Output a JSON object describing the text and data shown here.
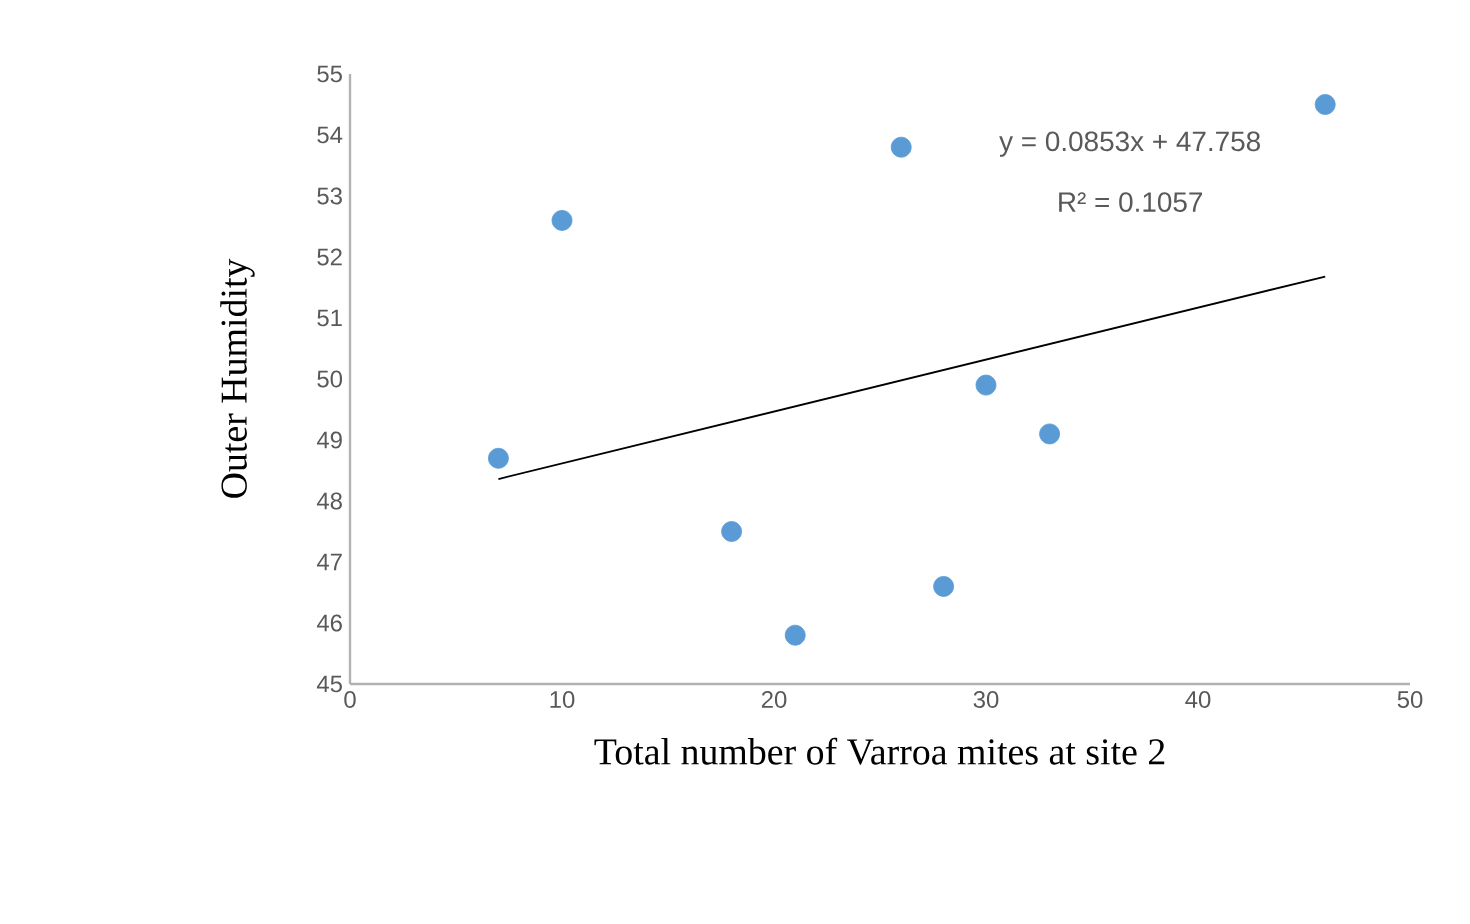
{
  "chart_data": {
    "type": "scatter",
    "xlabel": "Total number of Varroa mites  at site 2",
    "ylabel": "Outer Humidity",
    "annotations": [
      "y = 0.0853x + 47.758",
      "R² = 0.1057"
    ],
    "series": [
      {
        "color": "#5b9bd5",
        "marker": "circle",
        "x": [
          7,
          10,
          18,
          21,
          26,
          28,
          30,
          33,
          46
        ],
        "values": [
          48.7,
          52.6,
          47.5,
          45.8,
          53.8,
          46.6,
          49.9,
          49.1,
          54.5
        ]
      },
      {
        "type": "line",
        "color": "#000000",
        "marker": "none",
        "line_style": "solid",
        "x": [
          7,
          46
        ],
        "values": [
          48.36,
          51.68
        ]
      }
    ],
    "xlim": [
      0,
      50
    ],
    "ylim": [
      45,
      55
    ],
    "xticks": [
      0,
      10,
      20,
      30,
      40,
      50
    ],
    "yticks": [
      45,
      46,
      47,
      48,
      49,
      50,
      51,
      52,
      53,
      54,
      55
    ]
  }
}
